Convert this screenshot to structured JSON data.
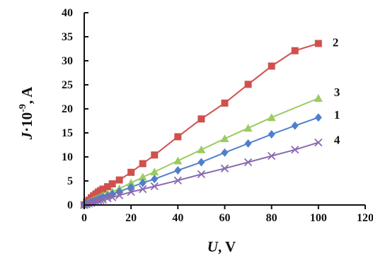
{
  "chart_data": {
    "type": "line",
    "title": "",
    "xlabel_italic": "U",
    "xlabel_rest": ", V",
    "ylabel_italic": "J",
    "ylabel_rest": "·10",
    "ylabel_exp": "-9",
    "ylabel_unit": ", A",
    "xlim": [
      0,
      120
    ],
    "ylim": [
      0,
      40
    ],
    "x_ticks": [
      0,
      20,
      40,
      60,
      80,
      100,
      120
    ],
    "y_ticks": [
      0,
      5,
      10,
      15,
      20,
      25,
      30,
      35,
      40
    ],
    "grid": false,
    "series": [
      {
        "name": "2",
        "color": "#d0504c",
        "marker": "square",
        "x": [
          0,
          1,
          2,
          3,
          4,
          5,
          6,
          7,
          8,
          10,
          12,
          15,
          20,
          25,
          30,
          40,
          50,
          60,
          70,
          80,
          90,
          100
        ],
        "y": [
          0,
          0.6,
          1.0,
          1.5,
          1.9,
          2.3,
          2.7,
          3.0,
          3.3,
          3.8,
          4.4,
          5.2,
          6.8,
          8.6,
          10.4,
          14.2,
          17.9,
          21.2,
          25.1,
          28.9,
          32.1,
          33.6
        ]
      },
      {
        "name": "3",
        "color": "#9acc60",
        "marker": "triangle",
        "x": [
          0,
          1,
          2,
          3,
          4,
          5,
          6,
          7,
          8,
          10,
          12,
          15,
          20,
          25,
          30,
          40,
          50,
          60,
          70,
          80,
          100
        ],
        "y": [
          0,
          0.3,
          0.6,
          0.8,
          1.1,
          1.3,
          1.5,
          1.7,
          2.0,
          2.4,
          2.8,
          3.4,
          4.6,
          5.8,
          6.9,
          9.2,
          11.5,
          13.8,
          16.0,
          18.2,
          22.2
        ]
      },
      {
        "name": "1",
        "color": "#4f7fcb",
        "marker": "diamond",
        "x": [
          0,
          1,
          2,
          3,
          4,
          5,
          6,
          7,
          8,
          10,
          12,
          15,
          20,
          25,
          30,
          40,
          50,
          60,
          70,
          80,
          90,
          100
        ],
        "y": [
          0,
          0.2,
          0.4,
          0.6,
          0.8,
          1.0,
          1.2,
          1.4,
          1.6,
          1.9,
          2.3,
          2.8,
          3.7,
          4.6,
          5.4,
          7.2,
          8.9,
          10.9,
          12.8,
          14.7,
          16.5,
          18.2
        ]
      },
      {
        "name": "4",
        "color": "#8a6ab0",
        "marker": "x",
        "x": [
          0,
          1,
          2,
          3,
          4,
          5,
          6,
          7,
          8,
          10,
          12,
          15,
          20,
          25,
          30,
          40,
          50,
          60,
          70,
          80,
          90,
          100
        ],
        "y": [
          0,
          0.1,
          0.3,
          0.4,
          0.6,
          0.7,
          0.9,
          1.0,
          1.1,
          1.4,
          1.6,
          2.0,
          2.7,
          3.3,
          3.9,
          5.1,
          6.4,
          7.6,
          8.9,
          10.2,
          11.5,
          13.0
        ]
      }
    ]
  }
}
